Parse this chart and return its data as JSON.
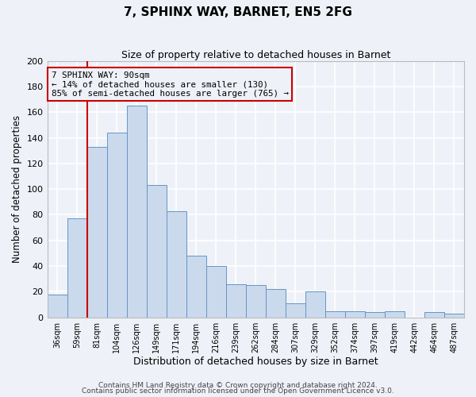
{
  "title": "7, SPHINX WAY, BARNET, EN5 2FG",
  "subtitle": "Size of property relative to detached houses in Barnet",
  "xlabel": "Distribution of detached houses by size in Barnet",
  "ylabel": "Number of detached properties",
  "bar_labels": [
    "36sqm",
    "59sqm",
    "81sqm",
    "104sqm",
    "126sqm",
    "149sqm",
    "171sqm",
    "194sqm",
    "216sqm",
    "239sqm",
    "262sqm",
    "284sqm",
    "307sqm",
    "329sqm",
    "352sqm",
    "374sqm",
    "397sqm",
    "419sqm",
    "442sqm",
    "464sqm",
    "487sqm"
  ],
  "bar_values": [
    18,
    77,
    133,
    144,
    165,
    103,
    83,
    48,
    40,
    26,
    25,
    22,
    11,
    20,
    5,
    5,
    4,
    5,
    0,
    4,
    3
  ],
  "bar_color": "#cad9ec",
  "bar_edge_color": "#6495c8",
  "ylim": [
    0,
    200
  ],
  "yticks": [
    0,
    20,
    40,
    60,
    80,
    100,
    120,
    140,
    160,
    180,
    200
  ],
  "vline_color": "#cc0000",
  "annotation_title": "7 SPHINX WAY: 90sqm",
  "annotation_line1": "← 14% of detached houses are smaller (130)",
  "annotation_line2": "85% of semi-detached houses are larger (765) →",
  "annotation_box_color": "#cc0000",
  "footer1": "Contains HM Land Registry data © Crown copyright and database right 2024.",
  "footer2": "Contains public sector information licensed under the Open Government Licence v3.0.",
  "background_color": "#eef2f8",
  "grid_color": "#ffffff"
}
